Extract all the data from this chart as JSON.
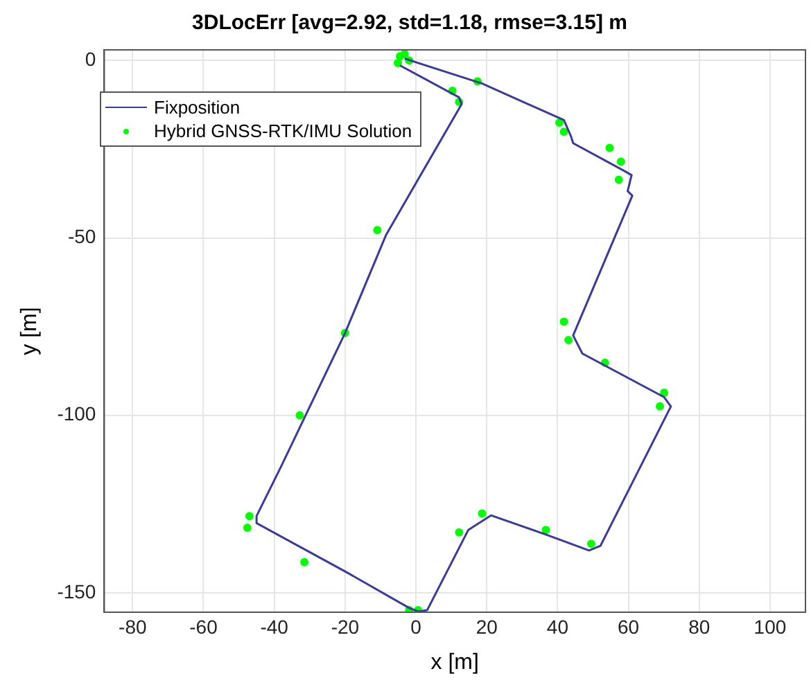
{
  "chart_data": {
    "type": "line",
    "title": "3DLocErr [avg=2.92, std=1.18, rmse=3.15] m",
    "xlabel": "x [m]",
    "ylabel": "y [m]",
    "xlim": [
      -88,
      110
    ],
    "ylim": [
      -155.5,
      3
    ],
    "xticks": [
      -80,
      -60,
      -40,
      -20,
      0,
      20,
      40,
      60,
      80,
      100
    ],
    "yticks": [
      -150,
      -100,
      -50,
      0
    ],
    "grid": true,
    "legend": "top left",
    "series": [
      {
        "name": "Fixposition",
        "type": "line",
        "color": "#3a3a9a",
        "marker": "none",
        "values": [
          0.6,
          -0.7,
          -6.5,
          -16.8,
          -21.4,
          -23.3,
          -31,
          -32.3,
          -36.8,
          -38.1,
          -77.5,
          -82.6,
          -94.9,
          -97.5,
          -136.8,
          -138.1,
          -133.6,
          -128.2,
          -132.3,
          -154.9,
          -155.3,
          -154.3,
          -144,
          -130.4,
          -128.4,
          -114.3,
          -76.8,
          -49.1,
          -12.3,
          -10.4,
          -1.4
        ],
        "x": [
          -3.2,
          0.6,
          18.7,
          41.8,
          43.8,
          44.4,
          58.6,
          60.9,
          59.8,
          61.1,
          44.4,
          47,
          70.1,
          72,
          52.1,
          48.9,
          36.7,
          21.2,
          14.8,
          3.2,
          0.6,
          -1.9,
          -20,
          -45,
          -45,
          -38,
          -20,
          -8.4,
          12.9,
          12.2,
          -4.5
        ]
      },
      {
        "name": "Hybrid GNSS-RTK/IMU Solution",
        "type": "scatter",
        "color": "#00ff00",
        "marker": "circle",
        "x": [
          -3.2,
          -1.9,
          17.4,
          40.5,
          41.8,
          54.7,
          57.9,
          57.3,
          41.8,
          43.1,
          53.4,
          70.1,
          68.9,
          49.5,
          36.7,
          18.7,
          12.2,
          0.6,
          -1.9,
          -31.5,
          -47.6,
          -47,
          -32.8,
          -20,
          -10.9,
          12.2,
          10.3,
          -5.1,
          -4.5
        ],
        "values": [
          1.9,
          0,
          -5.9,
          -17.5,
          -20.1,
          -24.6,
          -28.5,
          -33.6,
          -73.6,
          -78.8,
          -85.2,
          -93.6,
          -97.5,
          -136.2,
          -132.3,
          -127.7,
          -133,
          -154.9,
          -154.9,
          -141.4,
          -131.7,
          -128.4,
          -100,
          -76.8,
          -47.8,
          -11.7,
          -8.5,
          -0.7,
          1.2
        ]
      }
    ]
  }
}
